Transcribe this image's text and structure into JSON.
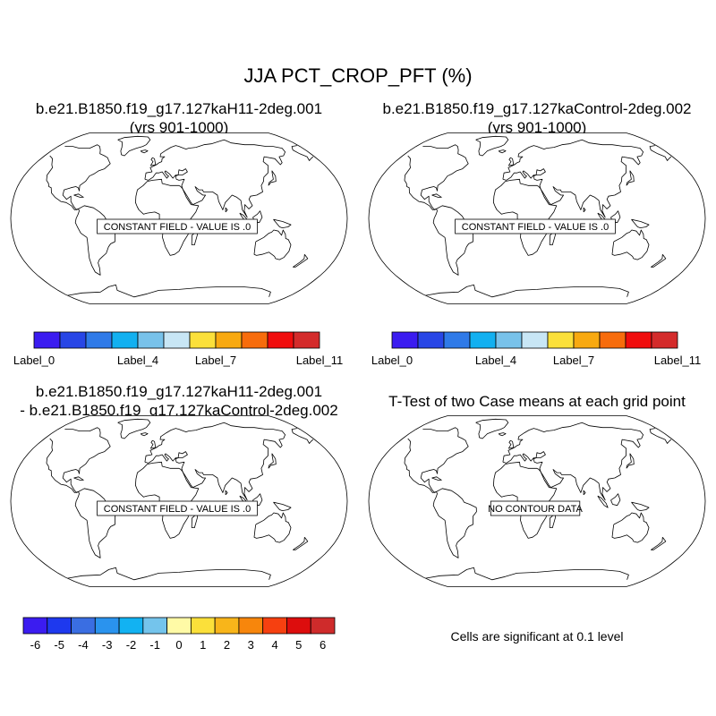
{
  "figure": {
    "title": "JJA PCT_CROP_PFT (%)",
    "significance_note": "Cells are significant at 0.1 level"
  },
  "panels": [
    {
      "title_line1": "b.e21.B1850.f19_g17.127kaH11-2deg.001",
      "title_line2": "(yrs 901-1000)",
      "message": "CONSTANT FIELD - VALUE IS .0"
    },
    {
      "title_line1": "b.e21.B1850.f19_g17.127kaControl-2deg.002",
      "title_line2": "(yrs 901-1000)",
      "message": "CONSTANT FIELD - VALUE IS .0"
    },
    {
      "title_line1": "b.e21.B1850.f19_g17.127kaH11-2deg.001",
      "title_line2": "- b.e21.B1850.f19_g17.127kaControl-2deg.002",
      "message": "CONSTANT FIELD - VALUE IS .0"
    },
    {
      "title_line1": "T-Test of two Case means at each grid point",
      "title_line2": "",
      "message": "NO CONTOUR DATA"
    }
  ],
  "chart_data": [
    {
      "type": "heatmap",
      "projection": "Robinson",
      "panel": 1,
      "constant_value": 0,
      "colorbar": {
        "colors": [
          "#3b1cf0",
          "#2846e6",
          "#2f7ae8",
          "#12b0f0",
          "#78c2ea",
          "#c8e6f5",
          "#fbe03a",
          "#f8a910",
          "#f76c0c",
          "#f00d0d",
          "#d42b2b"
        ],
        "tick_labels": [
          "Label_0",
          "Label_4",
          "Label_7",
          "Label_11"
        ]
      }
    },
    {
      "type": "heatmap",
      "projection": "Robinson",
      "panel": 2,
      "constant_value": 0,
      "colorbar": {
        "colors": [
          "#3b1cf0",
          "#2846e6",
          "#2f7ae8",
          "#12b0f0",
          "#78c2ea",
          "#c8e6f5",
          "#fbe03a",
          "#f8a910",
          "#f76c0c",
          "#f00d0d",
          "#d42b2b"
        ],
        "tick_labels": [
          "Label_0",
          "Label_4",
          "Label_7",
          "Label_11"
        ]
      }
    },
    {
      "type": "heatmap",
      "projection": "Robinson",
      "panel": 3,
      "constant_value": 0,
      "colorbar": {
        "colors": [
          "#3b1cf0",
          "#1e39ee",
          "#3a6ee2",
          "#2a93ee",
          "#12b2f2",
          "#74c4ec",
          "#fffaa6",
          "#fbe03a",
          "#f8b51a",
          "#f7860c",
          "#f64010",
          "#dd0d0d",
          "#cf2b2b"
        ],
        "tick_labels": [
          "-6",
          "-5",
          "-4",
          "-3",
          "-2",
          "-1",
          "0",
          "1",
          "2",
          "3",
          "4",
          "5",
          "6"
        ]
      }
    },
    {
      "type": "heatmap",
      "projection": "Robinson",
      "panel": 4,
      "message": "NO CONTOUR DATA"
    }
  ]
}
